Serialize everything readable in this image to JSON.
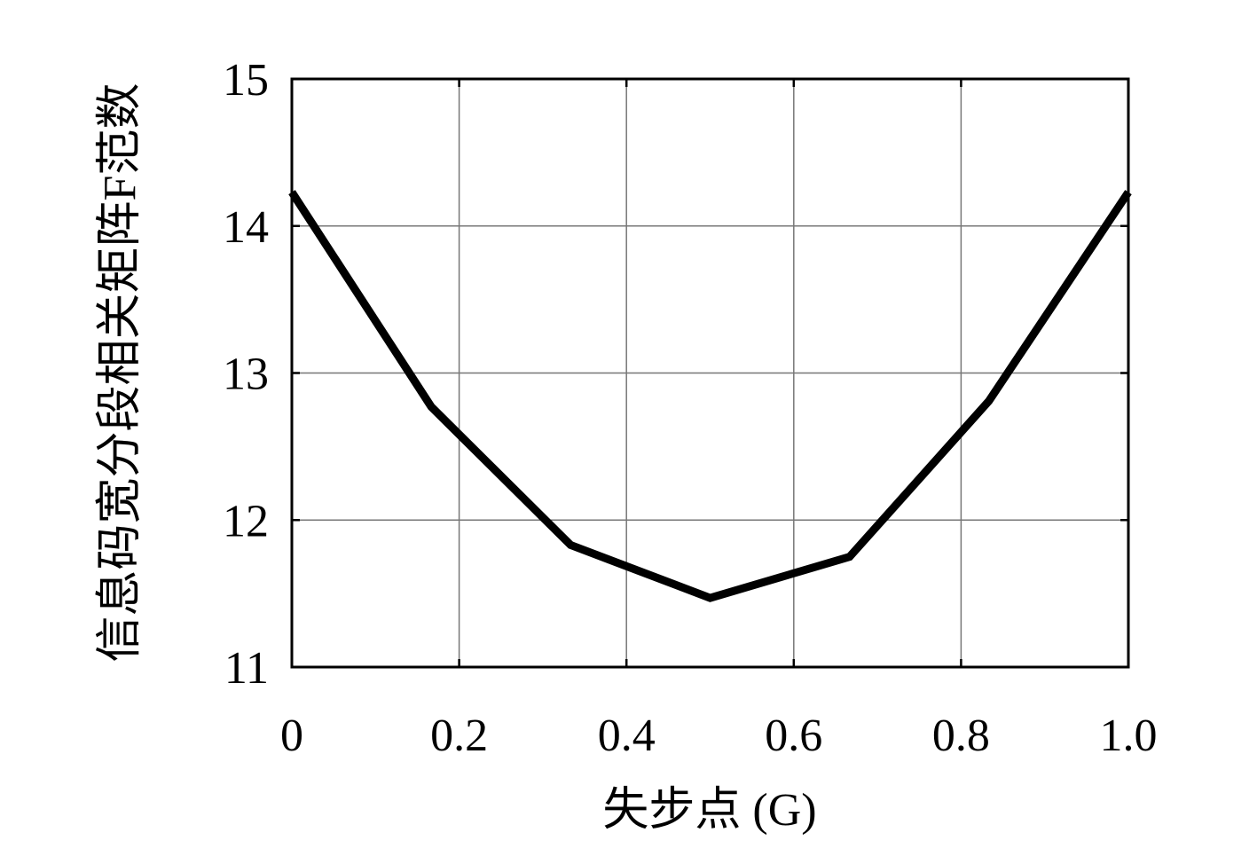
{
  "chart_data": {
    "type": "line",
    "x_label": "失步点 (G)",
    "y_label": "信息码宽分段相关矩阵F范数",
    "x": [
      0,
      0.1667,
      0.3333,
      0.5,
      0.6667,
      0.8333,
      1.0
    ],
    "series": [
      {
        "color": "#000000",
        "values": [
          14.23,
          12.77,
          11.83,
          11.47,
          11.75,
          12.81,
          14.23
        ]
      }
    ],
    "xlim": [
      0,
      1
    ],
    "ylim": [
      11,
      15
    ],
    "xticks": [
      0,
      0.2,
      0.4,
      0.6,
      0.8,
      {
        "value": 1,
        "label": "1.0"
      }
    ],
    "yticks": [
      11,
      12,
      13,
      14,
      15
    ],
    "grid": true
  }
}
